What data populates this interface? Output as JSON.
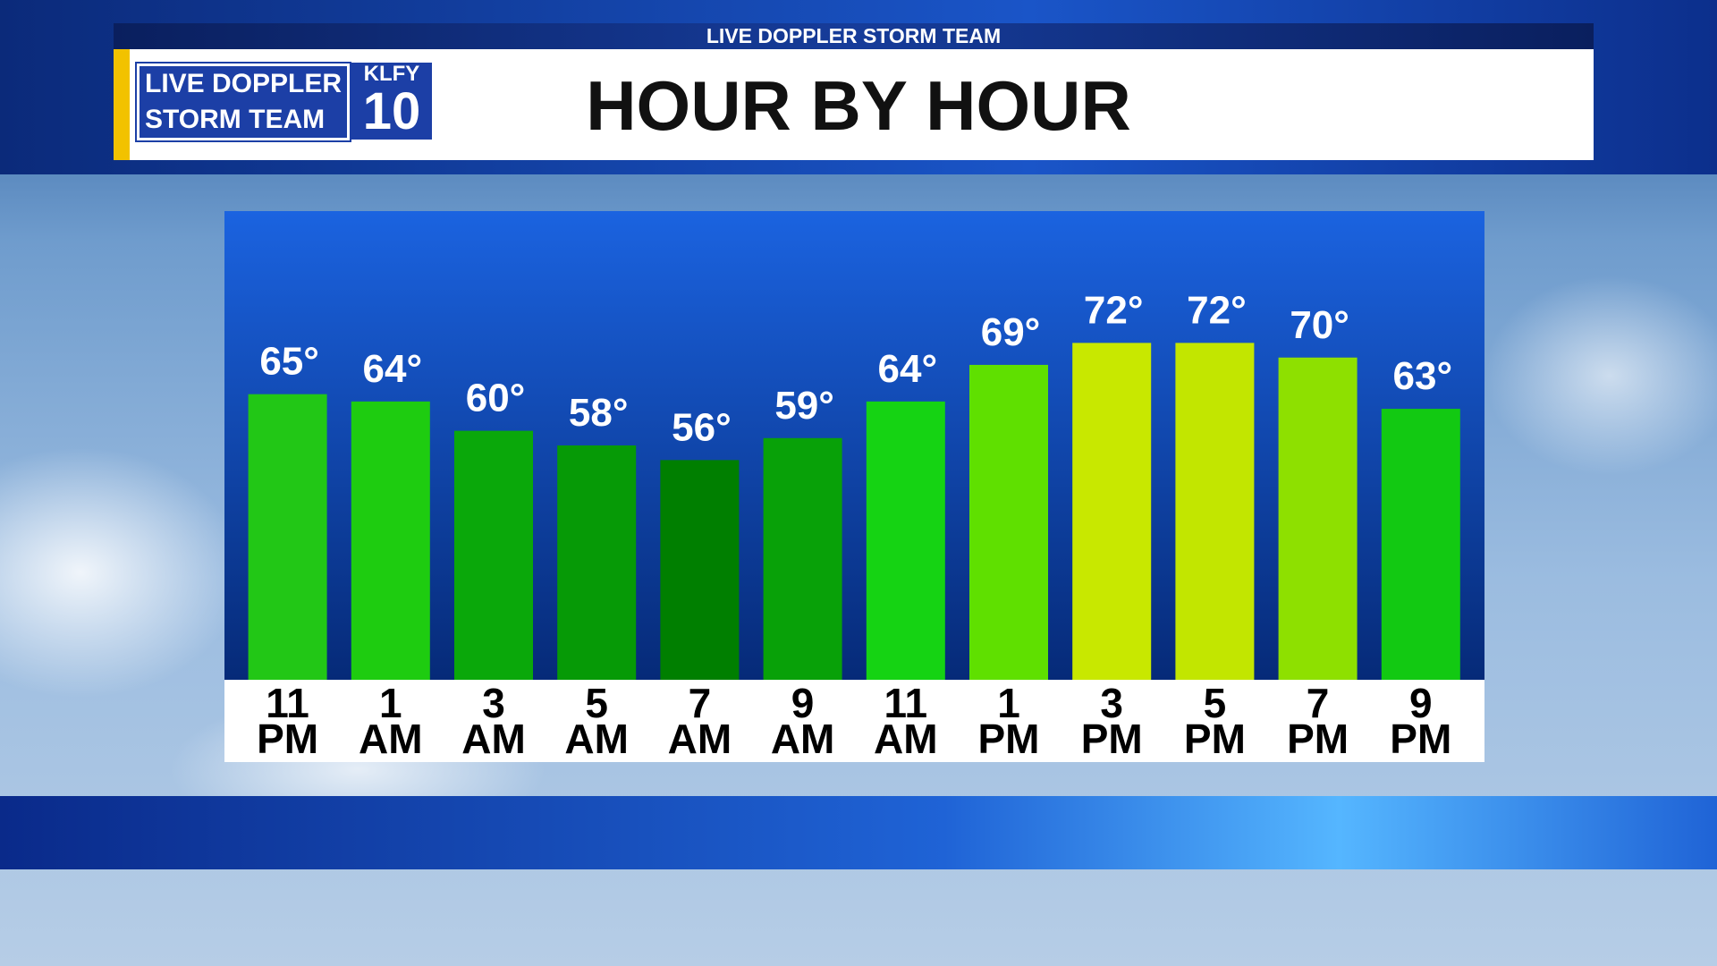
{
  "header": {
    "banner": "LIVE DOPPLER STORM TEAM",
    "logo_line1": "LIVE DOPPLER",
    "logo_line2": "STORM TEAM",
    "station": "KLFY",
    "channel": "10"
  },
  "chart_data": {
    "type": "bar",
    "title": "HOUR BY HOUR",
    "categories": [
      "11 PM",
      "1 AM",
      "3 AM",
      "5 AM",
      "7 AM",
      "9 AM",
      "11 AM",
      "1 PM",
      "3 PM",
      "5 PM",
      "7 PM",
      "9 PM"
    ],
    "values": [
      65,
      64,
      60,
      58,
      56,
      59,
      64,
      69,
      72,
      72,
      70,
      63
    ],
    "value_labels": [
      "65°",
      "64°",
      "60°",
      "58°",
      "56°",
      "59°",
      "64°",
      "69°",
      "72°",
      "72°",
      "70°",
      "63°"
    ],
    "colors": [
      "#22c716",
      "#1ecc10",
      "#0aa80a",
      "#069a06",
      "#007f00",
      "#08a108",
      "#15d313",
      "#5fe000",
      "#c8e800",
      "#c2e600",
      "#8ee000",
      "#12c912"
    ],
    "ylim": [
      26,
      90
    ]
  }
}
